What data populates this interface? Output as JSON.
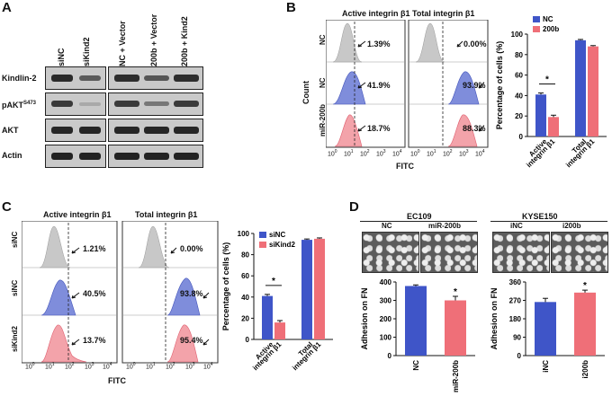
{
  "panel_a": {
    "letter": "A",
    "lanes": [
      "siNC",
      "siKind2",
      "NC + Vector",
      "200b + Vector",
      "200b + Kind2"
    ],
    "rows": [
      "Kindlin-2",
      "pAKT",
      "AKT",
      "Actin"
    ],
    "pakt_sup": "S473"
  },
  "panel_b": {
    "letter": "B",
    "hist_titles": [
      "Active integrin β1",
      "Total integrin β1"
    ],
    "row_labels": [
      "NC",
      "NC",
      "miR-200b"
    ],
    "count_label": "Count",
    "fitc_label": "FITC",
    "xticks": [
      "10",
      "10",
      "10",
      "10",
      "10"
    ],
    "xtick_exp": [
      "0",
      "1",
      "2",
      "3",
      "4"
    ],
    "active_pcts": [
      "1.39%",
      "41.9%",
      "18.7%"
    ],
    "total_pcts": [
      "0.00%",
      "93.9%",
      "88.3%"
    ]
  },
  "panel_c": {
    "letter": "C",
    "hist_titles": [
      "Active integrin β1",
      "Total integrin β1"
    ],
    "row_labels": [
      "siNC",
      "siNC",
      "siKind2"
    ],
    "fitc_label": "FITC",
    "xticks": [
      "10",
      "10",
      "10",
      "10",
      "10"
    ],
    "xtick_exp": [
      "0",
      "1",
      "2",
      "3",
      "4"
    ],
    "active_pcts": [
      "1.21%",
      "40.5%",
      "13.7%"
    ],
    "total_pcts": [
      "0.00%",
      "93.8%",
      "95.4%"
    ]
  },
  "panel_d": {
    "letter": "D",
    "left_title": "EC109",
    "left_imgs": [
      "NC",
      "miR-200b"
    ],
    "right_title": "KYSE150",
    "right_imgs": [
      "iNC",
      "i200b"
    ]
  },
  "colors": {
    "blue": "#3f55c8",
    "red": "#ef6f78",
    "gray": "#bdbdbd"
  },
  "chart_data": [
    {
      "id": "B-bar",
      "type": "bar",
      "ylabel": "Percentage of cells (%)",
      "categories": [
        "Active\nintegrin β1",
        "Total\nintegrin β1"
      ],
      "category_lines": [
        [
          "Active",
          "integrin β1"
        ],
        [
          "Total",
          "integrin β1"
        ]
      ],
      "series": [
        {
          "name": "NC",
          "values": [
            41,
            94
          ],
          "errors": [
            1.5,
            0.8
          ]
        },
        {
          "name": "200b",
          "values": [
            19,
            88
          ],
          "errors": [
            1.8,
            0.8
          ]
        }
      ],
      "ylim": [
        0,
        100
      ],
      "yticks": [
        0,
        20,
        40,
        60,
        80,
        100
      ],
      "significance": [
        {
          "text": "*",
          "category": 0
        }
      ]
    },
    {
      "id": "C-bar",
      "type": "bar",
      "ylabel": "Percentage of cells (%)",
      "category_lines": [
        [
          "Active",
          "integrin β1"
        ],
        [
          "Total",
          "integrin β1"
        ]
      ],
      "series": [
        {
          "name": "siNC",
          "values": [
            41,
            94
          ],
          "errors": [
            1.5,
            0.8
          ]
        },
        {
          "name": "siKind2",
          "values": [
            16,
            95
          ],
          "errors": [
            1.8,
            0.8
          ]
        }
      ],
      "ylim": [
        0,
        100
      ],
      "yticks": [
        0,
        20,
        40,
        60,
        80,
        100
      ],
      "significance": [
        {
          "text": "*",
          "category": 0
        }
      ]
    },
    {
      "id": "D-left",
      "type": "bar",
      "ylabel": "Adhesion on FN",
      "category_lines": [
        [
          "NC"
        ],
        [
          "miR-200b"
        ]
      ],
      "series": [
        {
          "name": "",
          "values": [
            378,
            300
          ],
          "errors": [
            6,
            22
          ],
          "colors": [
            "#3f55c8",
            "#ef6f78"
          ]
        }
      ],
      "ylim": [
        0,
        400
      ],
      "yticks": [
        0,
        100,
        200,
        300,
        400
      ],
      "significance": [
        {
          "text": "*",
          "category": 1
        }
      ]
    },
    {
      "id": "D-right",
      "type": "bar",
      "ylabel": "Adhesion on FN",
      "category_lines": [
        [
          "iNC"
        ],
        [
          "i200b"
        ]
      ],
      "series": [
        {
          "name": "",
          "values": [
            262,
            308
          ],
          "errors": [
            18,
            12
          ],
          "colors": [
            "#3f55c8",
            "#ef6f78"
          ]
        }
      ],
      "ylim": [
        0,
        360
      ],
      "yticks": [
        0,
        90,
        180,
        270,
        360
      ],
      "significance": [
        {
          "text": "*",
          "category": 1
        }
      ]
    }
  ]
}
